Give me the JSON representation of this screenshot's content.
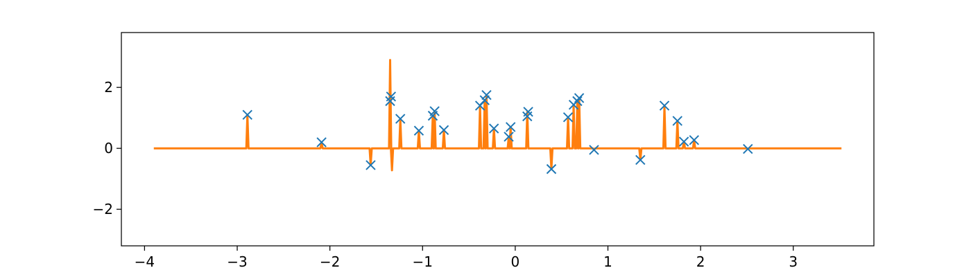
{
  "chart_data": {
    "type": "line",
    "title": "",
    "xlabel": "",
    "ylabel": "",
    "xlim": [
      -4.25,
      3.87
    ],
    "ylim": [
      -3.2,
      3.8
    ],
    "grid": false,
    "xticks": [
      -4,
      -3,
      -2,
      -1,
      0,
      1,
      2,
      3
    ],
    "xtick_labels": [
      "−4",
      "−3",
      "−2",
      "−1",
      "0",
      "1",
      "2",
      "3"
    ],
    "yticks": [
      -2,
      0,
      2
    ],
    "ytick_labels": [
      "−2",
      "0",
      "2"
    ],
    "colors": {
      "line": "#ff7f0e",
      "markers": "#1f77b4"
    },
    "series": [
      {
        "type": "scatter",
        "marker": "x",
        "x": [
          -2.89,
          -2.09,
          -1.56,
          -1.35,
          -1.34,
          -1.24,
          -1.04,
          -0.89,
          -0.87,
          -0.77,
          -0.38,
          -0.33,
          -0.31,
          -0.23,
          -0.07,
          -0.05,
          0.13,
          0.14,
          0.39,
          0.57,
          0.63,
          0.67,
          0.69,
          0.85,
          1.35,
          1.61,
          1.75,
          1.82,
          1.93,
          2.51
        ],
        "y": [
          1.1,
          0.2,
          -0.55,
          1.55,
          1.7,
          0.97,
          0.58,
          1.07,
          1.22,
          0.6,
          1.4,
          1.58,
          1.75,
          0.65,
          0.38,
          0.7,
          1.05,
          1.2,
          -0.68,
          1.02,
          1.43,
          1.55,
          1.65,
          -0.05,
          -0.38,
          1.4,
          0.9,
          0.22,
          0.27,
          -0.02
        ]
      },
      {
        "type": "line",
        "x_range": [
          -3.9,
          3.52
        ],
        "baseline": 0,
        "peaks": [
          {
            "x": -2.89,
            "y": 1.1
          },
          {
            "x": -2.09,
            "y": 0.2
          },
          {
            "x": -1.56,
            "y": -0.55
          },
          {
            "x": -1.35,
            "y": 2.9
          },
          {
            "x": -1.33,
            "y": -0.72
          },
          {
            "x": -1.24,
            "y": 0.97
          },
          {
            "x": -1.04,
            "y": 0.58
          },
          {
            "x": -0.89,
            "y": 1.07
          },
          {
            "x": -0.87,
            "y": 1.22
          },
          {
            "x": -0.77,
            "y": 0.6
          },
          {
            "x": -0.38,
            "y": 1.4
          },
          {
            "x": -0.33,
            "y": 1.58
          },
          {
            "x": -0.31,
            "y": 1.75
          },
          {
            "x": -0.23,
            "y": 0.65
          },
          {
            "x": -0.07,
            "y": 0.38
          },
          {
            "x": -0.05,
            "y": 0.7
          },
          {
            "x": 0.13,
            "y": 1.2
          },
          {
            "x": 0.39,
            "y": -0.68
          },
          {
            "x": 0.57,
            "y": 1.02
          },
          {
            "x": 0.63,
            "y": 1.43
          },
          {
            "x": 0.67,
            "y": 1.55
          },
          {
            "x": 0.69,
            "y": 1.65
          },
          {
            "x": 0.85,
            "y": -0.05
          },
          {
            "x": 1.35,
            "y": -0.38
          },
          {
            "x": 1.61,
            "y": 1.4
          },
          {
            "x": 1.75,
            "y": 0.9
          },
          {
            "x": 1.82,
            "y": 0.22
          },
          {
            "x": 1.93,
            "y": 0.27
          },
          {
            "x": 2.51,
            "y": -0.02
          }
        ]
      }
    ]
  }
}
